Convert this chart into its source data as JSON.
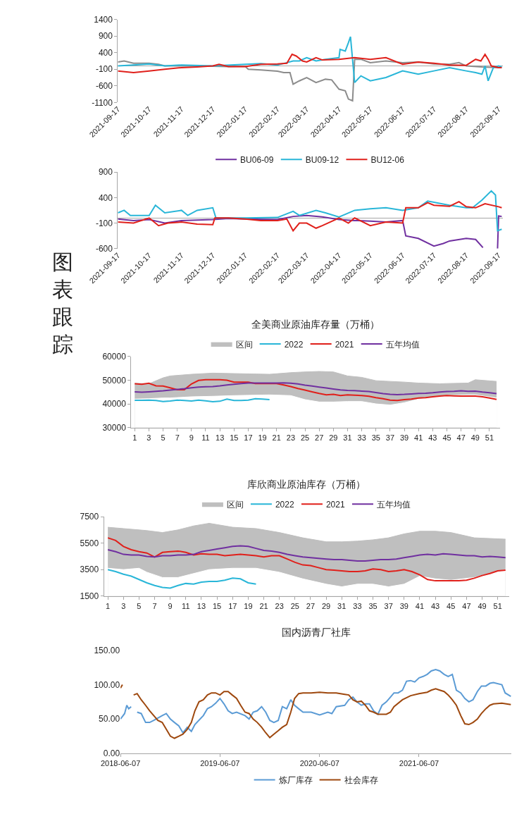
{
  "chart_data": [
    {
      "type": "other",
      "title": "图表跟踪"
    },
    {
      "type": "line",
      "xlim": [
        "2021-09-17",
        "2022-09-21"
      ],
      "xticks": [
        "2021-09-17",
        "2021-10-17",
        "2021-11-17",
        "2021-12-17",
        "2022-01-17",
        "2022-02-17",
        "2022-03-17",
        "2022-04-17",
        "2022-05-17",
        "2022-06-17",
        "2022-07-17",
        "2022-08-17",
        "2022-09-17"
      ],
      "ylim": [
        -1100,
        1400
      ],
      "yticks": [
        -1100,
        -600,
        -100,
        400,
        900,
        1400
      ],
      "series": [
        {
          "color": "#8c8c8c",
          "x": [
            "2021-09-17",
            "2021-09-23",
            "2021-10-02",
            "2021-10-17",
            "2021-10-26",
            "2021-11-01",
            "2021-11-17",
            "2021-12-17",
            "2022-01-01",
            "2022-01-17",
            "2022-01-20",
            "2022-02-01",
            "2022-02-17",
            "2022-02-23",
            "2022-03-01",
            "2022-03-04",
            "2022-03-10",
            "2022-03-17",
            "2022-03-26",
            "2022-04-04",
            "2022-04-10",
            "2022-04-17",
            "2022-04-23",
            "2022-04-26",
            "2022-04-30",
            "2022-05-02",
            "2022-05-08",
            "2022-05-17",
            "2022-06-01",
            "2022-06-17",
            "2022-07-02",
            "2022-07-17",
            "2022-08-01",
            "2022-08-10",
            "2022-08-17",
            "2022-09-01",
            "2022-09-17",
            "2022-09-20"
          ],
          "values": [
            120,
            150,
            80,
            80,
            50,
            0,
            0,
            -10,
            -20,
            -10,
            -100,
            -120,
            -160,
            -200,
            -200,
            -550,
            -450,
            -350,
            -500,
            -400,
            -420,
            -700,
            -750,
            -1000,
            -1050,
            200,
            200,
            100,
            150,
            100,
            120,
            60,
            50,
            100,
            0,
            -30,
            -50,
            -50
          ]
        },
        {
          "color": "#29b6d8",
          "x": [
            "2021-09-17",
            "2021-10-02",
            "2021-10-17",
            "2021-11-01",
            "2021-11-17",
            "2021-12-17",
            "2022-01-17",
            "2022-02-01",
            "2022-02-17",
            "2022-02-26",
            "2022-03-04",
            "2022-03-10",
            "2022-03-17",
            "2022-03-26",
            "2022-04-04",
            "2022-04-17",
            "2022-04-18",
            "2022-04-23",
            "2022-04-26",
            "2022-04-28",
            "2022-05-02",
            "2022-05-08",
            "2022-05-17",
            "2022-06-01",
            "2022-06-17",
            "2022-07-02",
            "2022-07-17",
            "2022-08-01",
            "2022-08-17",
            "2022-08-26",
            "2022-09-01",
            "2022-09-04",
            "2022-09-07",
            "2022-09-12",
            "2022-09-17",
            "2022-09-20"
          ],
          "values": [
            0,
            30,
            60,
            0,
            30,
            0,
            50,
            70,
            30,
            100,
            150,
            150,
            250,
            150,
            200,
            250,
            500,
            450,
            700,
            880,
            -500,
            -300,
            -450,
            -350,
            -150,
            -250,
            -150,
            -50,
            -150,
            -200,
            -250,
            0,
            -450,
            -50,
            0,
            -30
          ]
        },
        {
          "color": "#e0201b",
          "x": [
            "2021-09-17",
            "2021-10-02",
            "2021-10-17",
            "2021-11-01",
            "2021-11-17",
            "2021-12-02",
            "2021-12-17",
            "2021-12-23",
            "2022-01-01",
            "2022-01-17",
            "2022-02-01",
            "2022-02-17",
            "2022-02-26",
            "2022-03-03",
            "2022-03-07",
            "2022-03-13",
            "2022-03-17",
            "2022-03-26",
            "2022-04-01",
            "2022-04-17",
            "2022-05-02",
            "2022-05-17",
            "2022-06-01",
            "2022-06-17",
            "2022-07-02",
            "2022-07-17",
            "2022-08-01",
            "2022-08-17",
            "2022-08-26",
            "2022-08-31",
            "2022-09-04",
            "2022-09-07",
            "2022-09-10",
            "2022-09-17",
            "2022-09-20"
          ],
          "values": [
            -150,
            -200,
            -150,
            -100,
            -50,
            -30,
            0,
            50,
            -20,
            -20,
            50,
            60,
            80,
            350,
            300,
            150,
            120,
            250,
            180,
            200,
            250,
            200,
            250,
            50,
            120,
            80,
            30,
            20,
            200,
            150,
            350,
            200,
            0,
            -50,
            -50
          ]
        }
      ]
    },
    {
      "type": "line",
      "legend": "top",
      "xlim": [
        "2021-09-17",
        "2022-09-21"
      ],
      "xticks": [
        "2021-09-17",
        "2021-10-17",
        "2021-11-17",
        "2021-12-17",
        "2022-01-17",
        "2022-02-17",
        "2022-03-17",
        "2022-04-17",
        "2022-05-17",
        "2022-06-17",
        "2022-07-17",
        "2022-08-17",
        "2022-09-17"
      ],
      "ylim": [
        -600,
        900
      ],
      "yticks": [
        -600,
        -100,
        400,
        900
      ],
      "series": [
        {
          "name": "BU06-09",
          "color": "#7030a0",
          "x": [
            "2021-09-17",
            "2021-10-02",
            "2021-10-17",
            "2021-11-01",
            "2021-11-17",
            "2021-12-02",
            "2021-12-17",
            "2022-01-01",
            "2022-01-17",
            "2022-02-17",
            "2022-03-04",
            "2022-03-17",
            "2022-04-01",
            "2022-04-17",
            "2022-05-02",
            "2022-05-17",
            "2022-06-01",
            "2022-06-17",
            "2022-06-20",
            "2022-07-02",
            "2022-07-17",
            "2022-07-26",
            "2022-08-01",
            "2022-08-17",
            "2022-08-26",
            "2022-09-02",
            "2022-09-09",
            "2022-09-16",
            "2022-09-17",
            "2022-09-20"
          ],
          "values": [
            -20,
            -50,
            -30,
            -100,
            -50,
            -40,
            -30,
            -10,
            -20,
            -30,
            30,
            50,
            20,
            -30,
            -50,
            -60,
            -80,
            -50,
            -350,
            -400,
            -550,
            -500,
            -450,
            -400,
            -420,
            -580,
            null,
            -600,
            40,
            30
          ]
        },
        {
          "name": "BU09-12",
          "color": "#29b6d8",
          "x": [
            "2021-09-17",
            "2021-09-23",
            "2021-09-29",
            "2021-10-17",
            "2021-10-23",
            "2021-11-01",
            "2021-11-17",
            "2021-11-23",
            "2021-12-02",
            "2021-12-17",
            "2021-12-20",
            "2022-01-01",
            "2022-01-17",
            "2022-02-17",
            "2022-03-04",
            "2022-03-10",
            "2022-03-26",
            "2022-04-04",
            "2022-04-17",
            "2022-05-02",
            "2022-05-17",
            "2022-06-01",
            "2022-06-17",
            "2022-07-02",
            "2022-07-11",
            "2022-08-01",
            "2022-08-17",
            "2022-08-23",
            "2022-09-01",
            "2022-09-10",
            "2022-09-14",
            "2022-09-16",
            "2022-09-20"
          ],
          "values": [
            100,
            150,
            50,
            50,
            250,
            100,
            150,
            50,
            150,
            200,
            0,
            0,
            0,
            10,
            130,
            50,
            150,
            100,
            20,
            150,
            180,
            200,
            150,
            200,
            330,
            250,
            200,
            200,
            350,
            530,
            450,
            -250,
            -220
          ]
        },
        {
          "name": "BU12-06",
          "color": "#e0201b",
          "x": [
            "2021-09-17",
            "2021-10-02",
            "2021-10-17",
            "2021-10-26",
            "2021-11-04",
            "2021-11-17",
            "2021-12-02",
            "2021-12-17",
            "2021-12-19",
            "2022-01-01",
            "2022-01-17",
            "2022-02-01",
            "2022-02-17",
            "2022-02-26",
            "2022-03-04",
            "2022-03-10",
            "2022-03-17",
            "2022-03-26",
            "2022-04-01",
            "2022-04-17",
            "2022-04-26",
            "2022-05-02",
            "2022-05-17",
            "2022-06-01",
            "2022-06-17",
            "2022-06-20",
            "2022-07-02",
            "2022-07-11",
            "2022-07-17",
            "2022-08-01",
            "2022-08-10",
            "2022-08-17",
            "2022-08-26",
            "2022-09-04",
            "2022-09-17",
            "2022-09-20"
          ],
          "values": [
            -80,
            -100,
            0,
            -150,
            -100,
            -80,
            -120,
            -130,
            0,
            0,
            -20,
            -50,
            -50,
            -20,
            -250,
            -100,
            -100,
            -200,
            -150,
            0,
            -100,
            0,
            -150,
            -80,
            -100,
            200,
            200,
            300,
            250,
            230,
            320,
            220,
            200,
            280,
            220,
            200
          ]
        }
      ]
    },
    {
      "type": "line",
      "title": "全美商业原油库存量（万桶）",
      "legend": "top",
      "x": [
        1,
        2,
        3,
        4,
        5,
        6,
        7,
        8,
        9,
        10,
        11,
        12,
        13,
        14,
        15,
        16,
        17,
        18,
        19,
        20,
        21,
        22,
        23,
        24,
        25,
        26,
        27,
        28,
        29,
        30,
        31,
        32,
        33,
        34,
        35,
        36,
        37,
        38,
        39,
        40,
        41,
        42,
        43,
        44,
        45,
        46,
        47,
        48,
        49,
        50,
        51,
        52
      ],
      "xlim": [
        0.5,
        52.5
      ],
      "xticks": [
        1,
        3,
        5,
        7,
        9,
        11,
        13,
        15,
        17,
        19,
        21,
        23,
        25,
        27,
        29,
        31,
        33,
        35,
        37,
        39,
        41,
        43,
        45,
        47,
        49,
        51
      ],
      "ylim": [
        30000,
        60000
      ],
      "yticks": [
        30000,
        40000,
        50000,
        60000
      ],
      "series": [
        {
          "name": "区间",
          "type": "area",
          "color": "#bfbfbf",
          "x": [
            1,
            3,
            5,
            6,
            9,
            12,
            15,
            20,
            23,
            25,
            27,
            29,
            31,
            33,
            35,
            37,
            39,
            41,
            44,
            45,
            48,
            49,
            52
          ],
          "values": [
            48700,
            48500,
            51000,
            51800,
            52500,
            53000,
            52800,
            52500,
            53200,
            53500,
            53700,
            53500,
            51800,
            51200,
            49800,
            49500,
            49200,
            48800,
            48500,
            48600,
            48800,
            50200,
            49500
          ]
        },
        {
          "type": "area",
          "color": "#ffffff",
          "x": [
            1,
            3,
            5,
            6,
            9,
            12,
            15,
            20,
            23,
            25,
            27,
            29,
            31,
            33,
            35,
            37,
            39,
            41,
            44,
            45,
            48,
            49,
            52
          ],
          "values": [
            42000,
            42200,
            42500,
            42500,
            43000,
            43200,
            43500,
            43800,
            43500,
            41800,
            40800,
            40800,
            41000,
            41000,
            40000,
            39500,
            40500,
            42000,
            43000,
            43500,
            43800,
            43800,
            42500
          ]
        },
        {
          "name": "2022",
          "color": "#29b6d8",
          "x": [
            1,
            2,
            3,
            4,
            5,
            6,
            7,
            8,
            9,
            10,
            11,
            12,
            13,
            14,
            15,
            16,
            17,
            18,
            19,
            20
          ],
          "values": [
            41500,
            41500,
            41600,
            41400,
            41000,
            41200,
            41600,
            41400,
            41200,
            41600,
            41300,
            40900,
            41100,
            42000,
            41400,
            41400,
            41600,
            42200,
            42000,
            41800
          ]
        },
        {
          "name": "2021",
          "color": "#e0201b",
          "values": [
            48500,
            48300,
            48700,
            47600,
            47500,
            46800,
            46000,
            46000,
            48400,
            49900,
            50200,
            50200,
            50200,
            50000,
            49200,
            49200,
            49200,
            48600,
            48600,
            48600,
            48600,
            48000,
            47300,
            46500,
            45800,
            45100,
            44400,
            43800,
            44000,
            43500,
            43800,
            43700,
            43500,
            43200,
            42600,
            42200,
            41600,
            41400,
            41800,
            42000,
            42500,
            42600,
            43000,
            43300,
            43500,
            43400,
            43300,
            43300,
            43300,
            43000,
            42500,
            41900
          ]
        },
        {
          "name": "五年均值",
          "color": "#7030a0",
          "values": [
            45100,
            44900,
            45100,
            45300,
            45500,
            45800,
            46100,
            46400,
            46800,
            47100,
            47200,
            47300,
            47600,
            48000,
            48300,
            48600,
            48800,
            48800,
            48800,
            48800,
            48800,
            48900,
            48700,
            48400,
            47900,
            47500,
            47100,
            46700,
            46300,
            45900,
            45700,
            45600,
            45400,
            45200,
            44800,
            44300,
            44000,
            43900,
            44000,
            44200,
            44400,
            44500,
            44700,
            45000,
            45200,
            45300,
            45500,
            45300,
            45400,
            45000,
            44700,
            44300
          ]
        }
      ]
    },
    {
      "type": "line",
      "title": "库欣商业原油库存（万桶）",
      "legend": "top",
      "x": [
        1,
        2,
        3,
        4,
        5,
        6,
        7,
        8,
        9,
        10,
        11,
        12,
        13,
        14,
        15,
        16,
        17,
        18,
        19,
        20,
        21,
        22,
        23,
        24,
        25,
        26,
        27,
        28,
        29,
        30,
        31,
        32,
        33,
        34,
        35,
        36,
        37,
        38,
        39,
        40,
        41,
        42,
        43,
        44,
        45,
        46,
        47,
        48,
        49,
        50,
        51,
        52
      ],
      "xlim": [
        0.5,
        52.5
      ],
      "xticks": [
        1,
        3,
        5,
        7,
        9,
        11,
        13,
        15,
        17,
        19,
        21,
        23,
        25,
        27,
        29,
        31,
        33,
        35,
        37,
        39,
        41,
        43,
        45,
        47,
        49,
        51
      ],
      "ylim": [
        1500,
        7500
      ],
      "yticks": [
        1500,
        3500,
        5500,
        7500
      ],
      "series": [
        {
          "name": "区间",
          "type": "area",
          "color": "#bfbfbf",
          "x": [
            1,
            3,
            5,
            6,
            8,
            10,
            12,
            14,
            17,
            20,
            23,
            26,
            29,
            31,
            33,
            35,
            37,
            39,
            41,
            43,
            45,
            48,
            52
          ],
          "values": [
            6700,
            6600,
            6500,
            6450,
            6300,
            6500,
            6800,
            7000,
            6700,
            6600,
            6300,
            5900,
            5600,
            5600,
            5650,
            5750,
            5900,
            6200,
            6400,
            6400,
            6300,
            5900,
            5800
          ]
        },
        {
          "type": "area",
          "color": "#ffffff",
          "x": [
            1,
            3,
            5,
            6,
            8,
            10,
            12,
            14,
            17,
            20,
            23,
            26,
            29,
            31,
            33,
            35,
            37,
            39,
            41,
            43,
            45,
            48,
            52
          ],
          "values": [
            3600,
            3500,
            3600,
            3300,
            2900,
            2900,
            3200,
            3500,
            3600,
            3600,
            3300,
            2800,
            2400,
            2200,
            2400,
            2400,
            2200,
            2400,
            3000,
            2800,
            2700,
            2900,
            3500
          ]
        },
        {
          "name": "2022",
          "color": "#29b6d8",
          "x": [
            1,
            2,
            3,
            4,
            5,
            6,
            7,
            8,
            9,
            10,
            11,
            12,
            13,
            14,
            15,
            16,
            17,
            18,
            19,
            20
          ],
          "values": [
            3500,
            3350,
            3150,
            3000,
            2750,
            2500,
            2300,
            2150,
            2100,
            2300,
            2450,
            2400,
            2550,
            2600,
            2600,
            2700,
            2850,
            2800,
            2500,
            2400
          ]
        },
        {
          "name": "2021",
          "color": "#e0201b",
          "values": [
            5900,
            5700,
            5250,
            5000,
            4850,
            4750,
            4450,
            4800,
            4850,
            4900,
            4800,
            4600,
            4700,
            4650,
            4650,
            4550,
            4600,
            4650,
            4600,
            4550,
            4450,
            4550,
            4550,
            4300,
            4050,
            3850,
            3800,
            3650,
            3500,
            3450,
            3400,
            3350,
            3350,
            3400,
            3550,
            3500,
            3350,
            3400,
            3500,
            3350,
            3100,
            2750,
            2650,
            2650,
            2650,
            2650,
            2700,
            2850,
            3050,
            3200,
            3400,
            3450
          ]
        },
        {
          "name": "五年均值",
          "color": "#7030a0",
          "values": [
            5000,
            4850,
            4650,
            4600,
            4600,
            4500,
            4450,
            4550,
            4550,
            4600,
            4600,
            4650,
            4850,
            4950,
            5050,
            5150,
            5250,
            5300,
            5250,
            5100,
            4950,
            4900,
            4800,
            4650,
            4550,
            4450,
            4400,
            4350,
            4300,
            4250,
            4250,
            4200,
            4150,
            4150,
            4200,
            4250,
            4250,
            4300,
            4400,
            4500,
            4600,
            4650,
            4600,
            4700,
            4650,
            4600,
            4550,
            4550,
            4450,
            4500,
            4450,
            4400
          ]
        }
      ]
    },
    {
      "type": "line",
      "title": "国内沥青厂社库",
      "legend": "bottom",
      "xlim": [
        "2018-06-07",
        "2022-05-12"
      ],
      "xticks": [
        "2018-06-07",
        "2019-06-07",
        "2020-06-07",
        "2021-06-07"
      ],
      "ylim": [
        0,
        150
      ],
      "yticks": [
        {
          "value": 0,
          "label": "0.00"
        },
        {
          "value": 50,
          "label": "50.00"
        },
        {
          "value": 100,
          "label": "100.00"
        },
        {
          "value": 150,
          "label": "150.00"
        }
      ],
      "series": [
        {
          "name": "炼厂库存",
          "color": "#5b9bd5",
          "x": [
            "2018-06-07",
            "2018-06-22",
            "2018-06-30",
            "2018-07-07",
            "2018-07-16",
            "2018-07-25",
            "2018-08-07",
            "2018-08-22",
            "2018-09-07",
            "2018-09-22",
            "2018-10-07",
            "2018-11-07",
            "2018-11-22",
            "2018-12-07",
            "2018-12-22",
            "2019-01-07",
            "2019-01-22",
            "2019-02-07",
            "2019-02-22",
            "2019-03-07",
            "2019-04-07",
            "2019-04-22",
            "2019-05-07",
            "2019-05-22",
            "2019-06-07",
            "2019-06-22",
            "2019-07-07",
            "2019-07-22",
            "2019-08-07",
            "2019-09-07",
            "2019-09-22",
            "2019-10-07",
            "2019-10-22",
            "2019-11-07",
            "2019-11-22",
            "2019-12-07",
            "2019-12-22",
            "2020-01-07",
            "2020-01-22",
            "2020-02-07",
            "2020-02-22",
            "2020-03-07",
            "2020-03-22",
            "2020-04-07",
            "2020-05-07",
            "2020-06-07",
            "2020-07-07",
            "2020-07-22",
            "2020-08-07",
            "2020-09-07",
            "2020-09-22",
            "2020-10-07",
            "2020-10-22",
            "2020-11-07",
            "2020-11-22",
            "2020-12-07",
            "2020-12-22",
            "2021-01-07",
            "2021-01-22",
            "2021-02-07",
            "2021-02-22",
            "2021-03-07",
            "2021-03-22",
            "2021-04-07",
            "2021-04-22",
            "2021-05-07",
            "2021-05-22",
            "2021-06-07",
            "2021-06-22",
            "2021-07-07",
            "2021-07-22",
            "2021-08-07",
            "2021-08-22",
            "2021-09-07",
            "2021-09-22",
            "2021-10-07",
            "2021-10-22",
            "2021-11-07",
            "2021-11-22",
            "2021-12-07",
            "2021-12-22",
            "2022-01-07",
            "2022-01-22",
            "2022-02-07",
            "2022-02-22",
            "2022-03-07",
            "2022-04-07",
            "2022-04-19",
            "2022-05-10"
          ],
          "values": [
            50,
            58,
            70,
            65,
            68,
            null,
            60,
            58,
            45,
            45,
            48,
            55,
            58,
            50,
            45,
            40,
            30,
            38,
            32,
            42,
            55,
            65,
            68,
            73,
            80,
            72,
            62,
            58,
            60,
            55,
            50,
            60,
            62,
            68,
            60,
            48,
            45,
            48,
            68,
            65,
            78,
            70,
            65,
            60,
            60,
            56,
            60,
            58,
            68,
            70,
            78,
            82,
            75,
            70,
            72,
            72,
            62,
            57,
            70,
            75,
            82,
            88,
            88,
            92,
            105,
            106,
            104,
            110,
            112,
            115,
            120,
            122,
            120,
            115,
            112,
            115,
            92,
            88,
            80,
            75,
            78,
            90,
            98,
            98,
            102,
            103,
            100,
            88,
            83
          ]
        },
        {
          "name": "社会库存",
          "color": "#9e480e",
          "x": [
            "2018-06-07",
            "2018-06-14",
            "2018-06-25",
            "2018-07-25",
            "2018-08-07",
            "2018-08-22",
            "2018-09-07",
            "2018-09-22",
            "2018-10-07",
            "2018-10-22",
            "2018-11-07",
            "2018-11-22",
            "2018-12-07",
            "2018-12-22",
            "2019-01-07",
            "2019-01-22",
            "2019-02-07",
            "2019-02-22",
            "2019-03-07",
            "2019-03-22",
            "2019-04-07",
            "2019-04-22",
            "2019-05-07",
            "2019-05-22",
            "2019-06-07",
            "2019-06-22",
            "2019-07-07",
            "2019-07-22",
            "2019-08-07",
            "2019-08-22",
            "2019-09-07",
            "2019-09-22",
            "2019-10-07",
            "2019-10-22",
            "2019-11-07",
            "2019-11-22",
            "2019-12-07",
            "2019-12-22",
            "2020-01-07",
            "2020-01-22",
            "2020-02-07",
            "2020-02-22",
            "2020-03-07",
            "2020-03-22",
            "2020-04-07",
            "2020-05-07",
            "2020-06-07",
            "2020-07-07",
            "2020-08-07",
            "2020-09-07",
            "2020-09-22",
            "2020-10-07",
            "2020-10-22",
            "2020-11-07",
            "2020-11-22",
            "2020-12-07",
            "2020-12-22",
            "2021-01-07",
            "2021-02-07",
            "2021-02-22",
            "2021-03-07",
            "2021-04-07",
            "2021-05-07",
            "2021-06-07",
            "2021-07-07",
            "2021-07-22",
            "2021-08-07",
            "2021-08-22",
            "2021-09-07",
            "2021-09-22",
            "2021-10-07",
            "2021-10-22",
            "2021-11-07",
            "2021-11-22",
            "2021-12-07",
            "2021-12-22",
            "2022-01-07",
            "2022-01-22",
            "2022-02-07",
            "2022-02-22",
            "2022-03-07",
            "2022-04-07",
            "2022-05-10"
          ],
          "values": [
            95,
            100,
            null,
            85,
            87,
            78,
            70,
            62,
            55,
            48,
            45,
            35,
            25,
            22,
            25,
            28,
            35,
            45,
            62,
            75,
            78,
            85,
            88,
            88,
            85,
            90,
            90,
            85,
            80,
            70,
            60,
            58,
            50,
            45,
            38,
            30,
            23,
            28,
            33,
            38,
            42,
            60,
            80,
            87,
            88,
            88,
            89,
            88,
            88,
            86,
            85,
            78,
            75,
            76,
            70,
            62,
            60,
            57,
            57,
            60,
            68,
            78,
            84,
            87,
            89,
            92,
            94,
            92,
            90,
            85,
            78,
            70,
            55,
            43,
            42,
            45,
            50,
            58,
            65,
            70,
            72,
            73,
            71
          ]
        }
      ]
    }
  ]
}
